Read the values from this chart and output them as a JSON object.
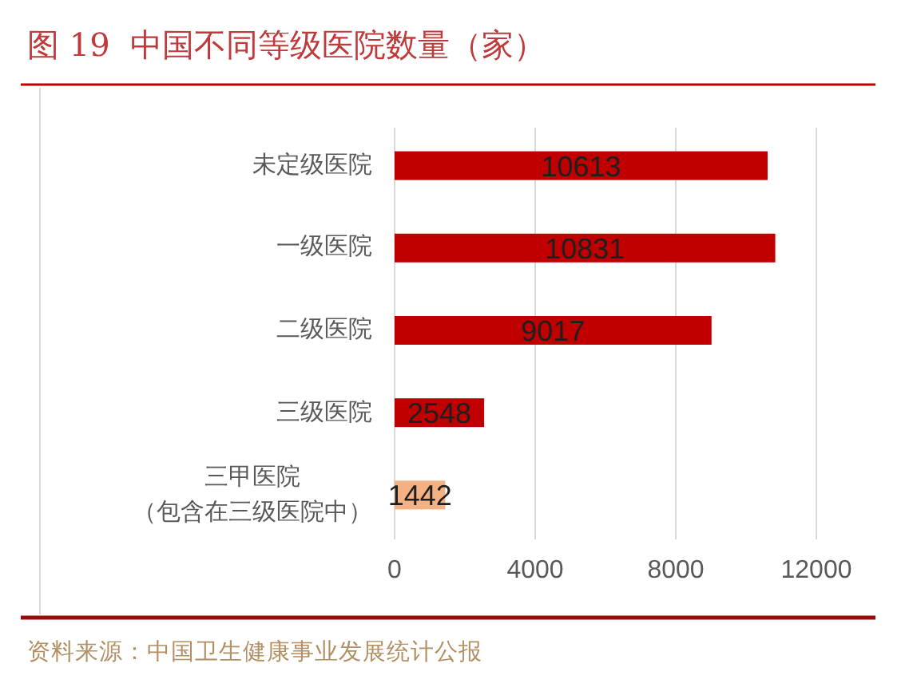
{
  "chart_data": {
    "type": "bar",
    "orientation": "horizontal",
    "title": "图 19  中国不同等级医院数量（家）",
    "categories": [
      "未定级医院",
      "一级医院",
      "二级医院",
      "三级医院",
      "三甲医院（包含在三级医院中）"
    ],
    "values": [
      10613,
      10831,
      9017,
      2548,
      1442
    ],
    "colors": [
      "#c00000",
      "#c00000",
      "#c00000",
      "#c00000",
      "#f4b183"
    ],
    "xlim": [
      0,
      12000
    ],
    "xticks": [
      0,
      4000,
      8000,
      12000
    ],
    "grid": "x",
    "data_labels": true,
    "annotations": [
      "资料来源：中国卫生健康事业发展统计公报"
    ]
  }
}
